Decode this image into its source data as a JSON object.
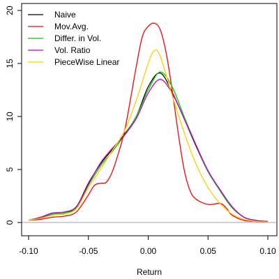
{
  "chart_data": {
    "type": "line",
    "title": "",
    "xlabel": "Return",
    "ylabel": "",
    "xlim": [
      -0.1,
      0.1
    ],
    "ylim": [
      0,
      20
    ],
    "xticks": [
      -0.1,
      -0.05,
      0.0,
      0.05,
      0.1
    ],
    "xtick_labels": [
      "-0.10",
      "-0.05",
      "0.00",
      "0.05",
      "0.10"
    ],
    "yticks": [
      0,
      5,
      10,
      15,
      20
    ],
    "ytick_labels": [
      "0",
      "5",
      "10",
      "15",
      "20"
    ],
    "grid": false,
    "legend_position": "top-left",
    "baseline": {
      "y": 0,
      "color": "#a0a0a0"
    },
    "series": [
      {
        "name": "Naive",
        "color": "#000000",
        "x": [
          -0.1,
          -0.09,
          -0.08,
          -0.07,
          -0.06,
          -0.05,
          -0.04,
          -0.03,
          -0.02,
          -0.01,
          0.0,
          0.01,
          0.02,
          0.03,
          0.04,
          0.05,
          0.06,
          0.07,
          0.08,
          0.09,
          0.1
        ],
        "y": [
          0.2,
          0.4,
          0.8,
          0.9,
          1.5,
          3.7,
          5.5,
          6.9,
          8.3,
          10.0,
          12.8,
          14.1,
          12.3,
          9.8,
          7.2,
          4.8,
          3.1,
          1.5,
          0.5,
          0.2,
          0.1
        ]
      },
      {
        "name": "Mov.Avg.",
        "color": "#ff0000",
        "x": [
          -0.1,
          -0.09,
          -0.08,
          -0.07,
          -0.06,
          -0.05,
          -0.045,
          -0.04,
          -0.035,
          -0.03,
          -0.025,
          -0.02,
          -0.015,
          -0.01,
          -0.005,
          0.0,
          0.005,
          0.01,
          0.015,
          0.02,
          0.025,
          0.03,
          0.035,
          0.04,
          0.05,
          0.06,
          0.065,
          0.07,
          0.08,
          0.09,
          0.1
        ],
        "y": [
          0.2,
          0.3,
          0.5,
          0.6,
          1.0,
          2.6,
          3.5,
          3.7,
          3.8,
          4.8,
          6.5,
          8.5,
          11.5,
          14.7,
          17.5,
          18.5,
          18.8,
          18.2,
          16.0,
          12.5,
          8.5,
          5.0,
          3.0,
          2.2,
          1.7,
          1.8,
          1.4,
          0.7,
          0.2,
          0.1,
          0.05
        ]
      },
      {
        "name": "Differ. in Vol.",
        "color": "#00cc00",
        "x": [
          -0.1,
          -0.09,
          -0.08,
          -0.07,
          -0.06,
          -0.05,
          -0.04,
          -0.03,
          -0.02,
          -0.01,
          0.0,
          0.01,
          0.02,
          0.03,
          0.04,
          0.05,
          0.06,
          0.07,
          0.08,
          0.09,
          0.1
        ],
        "y": [
          0.2,
          0.5,
          0.8,
          0.9,
          1.4,
          3.5,
          5.3,
          6.7,
          8.2,
          10.0,
          12.5,
          14.2,
          12.8,
          10.0,
          7.3,
          4.8,
          3.0,
          1.4,
          0.5,
          0.2,
          0.1
        ]
      },
      {
        "name": "Vol. Ratio",
        "color": "#cc00cc",
        "x": [
          -0.1,
          -0.09,
          -0.08,
          -0.07,
          -0.06,
          -0.05,
          -0.04,
          -0.03,
          -0.02,
          -0.01,
          0.0,
          0.01,
          0.02,
          0.03,
          0.04,
          0.05,
          0.06,
          0.07,
          0.08,
          0.09,
          0.1
        ],
        "y": [
          0.2,
          0.5,
          0.9,
          1.0,
          1.5,
          3.6,
          5.6,
          7.0,
          8.2,
          9.8,
          12.2,
          13.5,
          12.2,
          9.8,
          7.3,
          4.9,
          3.1,
          1.5,
          0.5,
          0.2,
          0.1
        ]
      },
      {
        "name": "PieceWise Linear",
        "color": "#ffcc00",
        "x": [
          -0.1,
          -0.09,
          -0.08,
          -0.07,
          -0.06,
          -0.05,
          -0.04,
          -0.03,
          -0.02,
          -0.01,
          0.0,
          0.005,
          0.01,
          0.02,
          0.03,
          0.04,
          0.05,
          0.06,
          0.07,
          0.08,
          0.09,
          0.1
        ],
        "y": [
          0.2,
          0.4,
          0.7,
          0.8,
          1.3,
          3.3,
          5.0,
          6.8,
          8.6,
          11.5,
          15.0,
          16.2,
          15.7,
          12.0,
          8.5,
          5.5,
          3.3,
          1.8,
          0.8,
          0.3,
          0.1,
          0.05
        ]
      }
    ]
  }
}
